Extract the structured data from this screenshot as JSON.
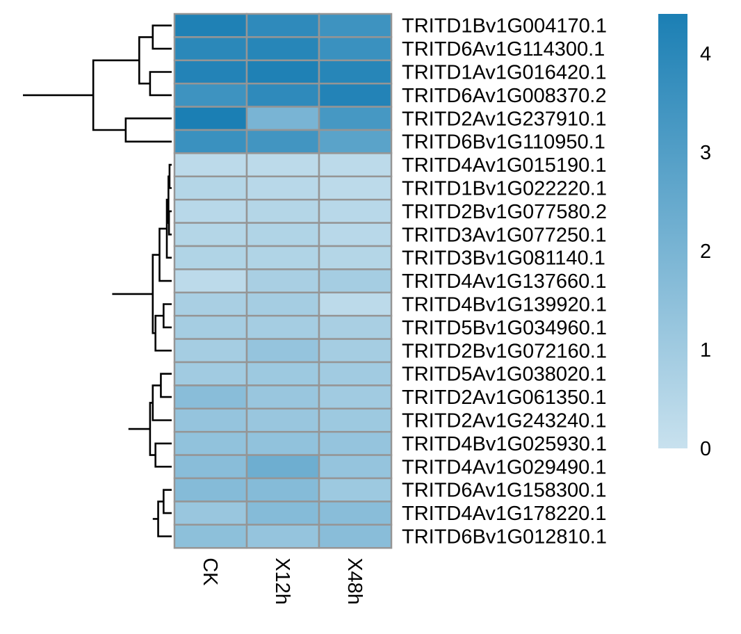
{
  "chart_data": {
    "type": "heatmap",
    "title": "",
    "columns": [
      "CK",
      "X12h",
      "X48h"
    ],
    "rows": [
      "TRITD1Bv1G004170.1",
      "TRITD6Av1G114300.1",
      "TRITD1Av1G016420.1",
      "TRITD6Av1G008370.2",
      "TRITD2Av1G237910.1",
      "TRITD6Bv1G110950.1",
      "TRITD4Av1G015190.1",
      "TRITD1Bv1G022220.1",
      "TRITD2Bv1G077580.2",
      "TRITD3Av1G077250.1",
      "TRITD3Bv1G081140.1",
      "TRITD4Av1G137660.1",
      "TRITD4Bv1G139920.1",
      "TRITD5Bv1G034960.1",
      "TRITD2Bv1G072160.1",
      "TRITD5Av1G038020.1",
      "TRITD2Av1G061350.1",
      "TRITD2Av1G243240.1",
      "TRITD4Bv1G025930.1",
      "TRITD4Av1G029490.1",
      "TRITD6Av1G158300.1",
      "TRITD4Av1G178220.1",
      "TRITD6Bv1G012810.1"
    ],
    "values": [
      [
        4.3,
        3.9,
        3.5
      ],
      [
        4.0,
        4.1,
        3.6
      ],
      [
        4.2,
        4.3,
        4.1
      ],
      [
        3.5,
        3.9,
        4.2
      ],
      [
        4.4,
        2.0,
        3.3
      ],
      [
        3.6,
        3.4,
        2.8
      ],
      [
        0.3,
        0.3,
        0.3
      ],
      [
        0.5,
        0.4,
        0.3
      ],
      [
        0.4,
        0.5,
        0.4
      ],
      [
        0.5,
        0.6,
        0.4
      ],
      [
        0.6,
        0.6,
        0.5
      ],
      [
        0.3,
        0.8,
        0.9
      ],
      [
        0.8,
        0.9,
        0.3
      ],
      [
        0.9,
        0.9,
        0.8
      ],
      [
        0.9,
        1.3,
        0.9
      ],
      [
        1.0,
        1.1,
        1.0
      ],
      [
        1.6,
        1.2,
        1.0
      ],
      [
        1.3,
        1.2,
        1.1
      ],
      [
        1.4,
        1.4,
        1.3
      ],
      [
        1.6,
        2.3,
        1.3
      ],
      [
        1.7,
        1.7,
        1.1
      ],
      [
        1.2,
        1.7,
        1.6
      ],
      [
        1.5,
        1.3,
        1.6
      ]
    ],
    "legend": {
      "min": 0,
      "max": 4.4,
      "ticks": [
        0,
        1,
        2,
        3,
        4
      ],
      "colors": [
        "#c8e1ee",
        "#1b7fb4"
      ],
      "placement": "right"
    },
    "cell_border_color": "#959595",
    "row_dendrogram": {
      "leaf_order": [
        0,
        1,
        2,
        3,
        4,
        5,
        6,
        7,
        8,
        9,
        10,
        11,
        12,
        13,
        14,
        15,
        16,
        17,
        18,
        19,
        20,
        21,
        22
      ],
      "merges": [
        [
          0,
          1,
          0.7
        ],
        [
          2,
          3,
          0.8
        ],
        [
          -1,
          -2,
          1.2
        ],
        [
          4,
          5,
          1.7
        ],
        [
          -3,
          -4,
          2.9
        ],
        [
          6,
          7,
          0.08
        ],
        [
          8,
          9,
          0.1
        ],
        [
          -6,
          -7,
          0.12
        ],
        [
          -8,
          10,
          0.18
        ],
        [
          -9,
          11,
          0.45
        ],
        [
          12,
          13,
          0.3
        ],
        [
          -11,
          14,
          0.6
        ],
        [
          -10,
          -12,
          0.7
        ],
        [
          15,
          16,
          0.4
        ],
        [
          -14,
          17,
          0.7
        ],
        [
          18,
          19,
          0.6
        ],
        [
          -15,
          -16,
          0.8
        ],
        [
          20,
          21,
          0.3
        ],
        [
          -18,
          22,
          0.5
        ],
        [
          -19,
          23,
          0.7
        ],
        [
          -17,
          -20,
          1.6
        ],
        [
          -13,
          -21,
          2.2
        ],
        [
          -5,
          -22,
          5.5
        ]
      ]
    }
  }
}
